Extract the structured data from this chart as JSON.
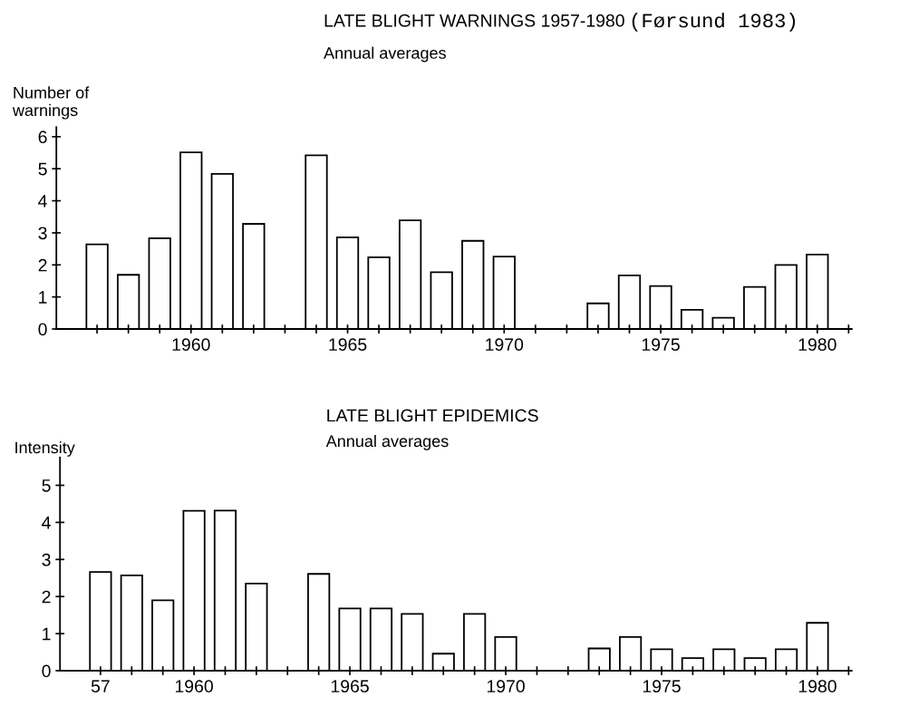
{
  "chart_data": [
    {
      "type": "bar",
      "title": "LATE BLIGHT WARNINGS 1957-1980",
      "subtitle": "Annual averages",
      "ylabel": "Number of\nwarnings",
      "annotations": [
        "(Førsund 1983)"
      ],
      "x": [
        1957,
        1958,
        1959,
        1960,
        1961,
        1962,
        1963,
        1964,
        1965,
        1966,
        1967,
        1968,
        1969,
        1970,
        1971,
        1972,
        1973,
        1974,
        1975,
        1976,
        1977,
        1978,
        1979,
        1980
      ],
      "series": [
        {
          "color": "#ffffff",
          "values": [
            2.64,
            1.69,
            2.83,
            5.51,
            4.84,
            3.28,
            null,
            5.42,
            2.86,
            2.24,
            3.39,
            1.77,
            2.75,
            2.26,
            null,
            null,
            0.8,
            1.67,
            1.34,
            0.6,
            0.35,
            1.31,
            2.0,
            2.32
          ]
        }
      ],
      "xlim": [
        1955.7,
        1981.1
      ],
      "xticks": [
        {
          "value": 1957,
          "label": null
        },
        {
          "value": 1958,
          "label": null
        },
        {
          "value": 1959,
          "label": null
        },
        1960,
        {
          "value": 1961,
          "label": null
        },
        {
          "value": 1962,
          "label": null
        },
        {
          "value": 1963,
          "label": null
        },
        {
          "value": 1964,
          "label": null
        },
        1965,
        {
          "value": 1966,
          "label": null
        },
        {
          "value": 1967,
          "label": null
        },
        {
          "value": 1968,
          "label": null
        },
        {
          "value": 1969,
          "label": null
        },
        1970,
        {
          "value": 1971,
          "label": null
        },
        {
          "value": 1972,
          "label": null
        },
        {
          "value": 1973,
          "label": null
        },
        {
          "value": 1974,
          "label": null
        },
        1975,
        {
          "value": 1976,
          "label": null
        },
        {
          "value": 1977,
          "label": null
        },
        {
          "value": 1978,
          "label": null
        },
        {
          "value": 1979,
          "label": null
        },
        1980,
        {
          "value": 1981,
          "label": null
        }
      ],
      "ylim": [
        0,
        6.3
      ],
      "yticks": [
        0,
        1,
        2,
        3,
        4,
        5,
        6
      ],
      "grid": false,
      "legend": false
    },
    {
      "type": "bar",
      "title": "LATE BLIGHT EPIDEMICS",
      "subtitle": "Annual averages",
      "ylabel": "Intensity",
      "x": [
        1957,
        1958,
        1959,
        1960,
        1961,
        1962,
        1963,
        1964,
        1965,
        1966,
        1967,
        1968,
        1969,
        1970,
        1971,
        1972,
        1973,
        1974,
        1975,
        1976,
        1977,
        1978,
        1979,
        1980
      ],
      "series": [
        {
          "color": "#ffffff",
          "values": [
            2.66,
            2.57,
            1.9,
            4.31,
            4.32,
            2.35,
            null,
            2.61,
            1.68,
            1.68,
            1.53,
            0.46,
            1.53,
            0.91,
            null,
            null,
            0.6,
            0.91,
            0.58,
            0.34,
            0.58,
            0.34,
            0.58,
            1.29
          ]
        }
      ],
      "xlim": [
        1955.7,
        1981.1
      ],
      "xticks": [
        {
          "value": 1957,
          "label": "57"
        },
        {
          "value": 1958,
          "label": null
        },
        {
          "value": 1959,
          "label": null
        },
        1960,
        {
          "value": 1961,
          "label": null
        },
        {
          "value": 1962,
          "label": null
        },
        {
          "value": 1963,
          "label": null
        },
        {
          "value": 1964,
          "label": null
        },
        1965,
        {
          "value": 1966,
          "label": null
        },
        {
          "value": 1967,
          "label": null
        },
        {
          "value": 1968,
          "label": null
        },
        {
          "value": 1969,
          "label": null
        },
        1970,
        {
          "value": 1971,
          "label": null
        },
        {
          "value": 1972,
          "label": null
        },
        {
          "value": 1973,
          "label": null
        },
        {
          "value": 1974,
          "label": null
        },
        1975,
        {
          "value": 1976,
          "label": null
        },
        {
          "value": 1977,
          "label": null
        },
        {
          "value": 1978,
          "label": null
        },
        {
          "value": 1979,
          "label": null
        },
        1980,
        {
          "value": 1981,
          "label": null
        }
      ],
      "ylim": [
        0,
        5.75
      ],
      "yticks": [
        0,
        1,
        2,
        3,
        4,
        5
      ],
      "grid": false,
      "legend": false
    }
  ]
}
